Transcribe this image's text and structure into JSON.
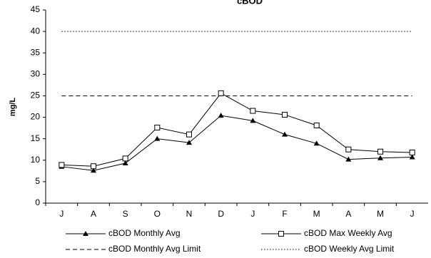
{
  "chart_data": {
    "type": "line",
    "title": "cBOD",
    "y_label": "mg/L",
    "categories": [
      "J",
      "A",
      "S",
      "O",
      "N",
      "D",
      "J",
      "F",
      "M",
      "A",
      "M",
      "J"
    ],
    "series": [
      {
        "name": "cBOD Monthly Avg",
        "color": "#000000",
        "marker": "triangle",
        "dash": "solid",
        "values": [
          8.5,
          7.6,
          9.3,
          15,
          14.1,
          20.4,
          19.2,
          16,
          13.9,
          10.2,
          10.5,
          10.7
        ]
      },
      {
        "name": "cBOD Max Weekly Avg",
        "color": "#000000",
        "marker": "square",
        "dash": "solid",
        "values": [
          8.9,
          8.6,
          10.4,
          17.6,
          16,
          25.6,
          21.5,
          20.6,
          18.1,
          12.5,
          12,
          11.8
        ]
      },
      {
        "name": "cBOD Monthly Avg Limit",
        "color": "#000000",
        "marker": "none",
        "dash": "dashed",
        "values": [
          25,
          25,
          25,
          25,
          25,
          25,
          25,
          25,
          25,
          25,
          25,
          25
        ]
      },
      {
        "name": "cBOD Weekly Avg Limit",
        "color": "#000000",
        "marker": "none",
        "dash": "dotted",
        "values": [
          40,
          40,
          40,
          40,
          40,
          40,
          40,
          40,
          40,
          40,
          40,
          40
        ]
      }
    ],
    "ylim": [
      0,
      45
    ],
    "yticks": [
      0,
      5,
      10,
      15,
      20,
      25,
      30,
      35,
      40,
      45
    ],
    "grid": false
  }
}
